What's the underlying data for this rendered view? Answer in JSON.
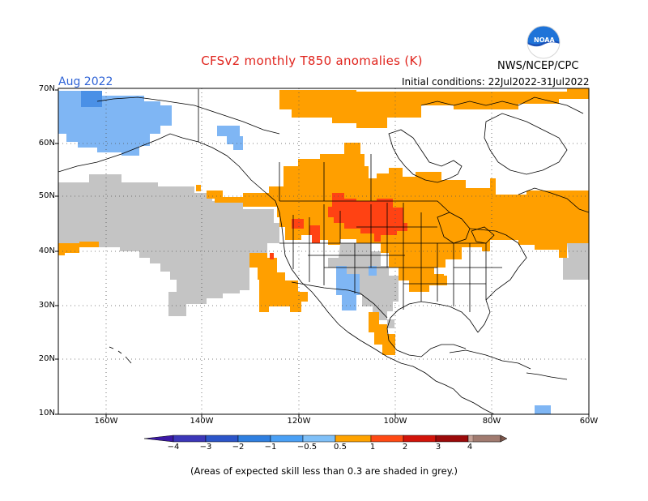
{
  "header": {
    "title": "CFSv2 monthly T850 anomalies (K)",
    "month": "Aug 2022",
    "agency": "NWS/NCEP/CPC",
    "initial_conditions": "Initial conditions: 22Jul2022-31Jul2022",
    "logo_text": "NOAA"
  },
  "map": {
    "lat_labels": [
      "70N",
      "60N",
      "50N",
      "40N",
      "30N",
      "20N",
      "10N"
    ],
    "lon_labels": [
      "160W",
      "140W",
      "120W",
      "100W",
      "80W",
      "60W"
    ],
    "colors": {
      "not_skillful_grey": "#c4c4c4",
      "pos_0_5_to_1": "#ff9f00",
      "pos_1_to_2": "#ff4213",
      "neg_0_5_to_1": "#7fb6f4",
      "coast": "#000000"
    }
  },
  "colorbar": {
    "labels": [
      "−4",
      "−3",
      "−2",
      "−1",
      "−0.5",
      "0.5",
      "1",
      "2",
      "3",
      "4"
    ],
    "colors": [
      "#3c19a6",
      "#2c55c9",
      "#2f7fe0",
      "#4aa0f5",
      "#7fc0f8",
      "#ffffff",
      "#ffa300",
      "#ff4a14",
      "#d2140a",
      "#9b0a0a",
      "#c6a195",
      "#7d574c"
    ]
  },
  "footnote": "(Areas of expected skill less than 0.3 are shaded in grey.)"
}
